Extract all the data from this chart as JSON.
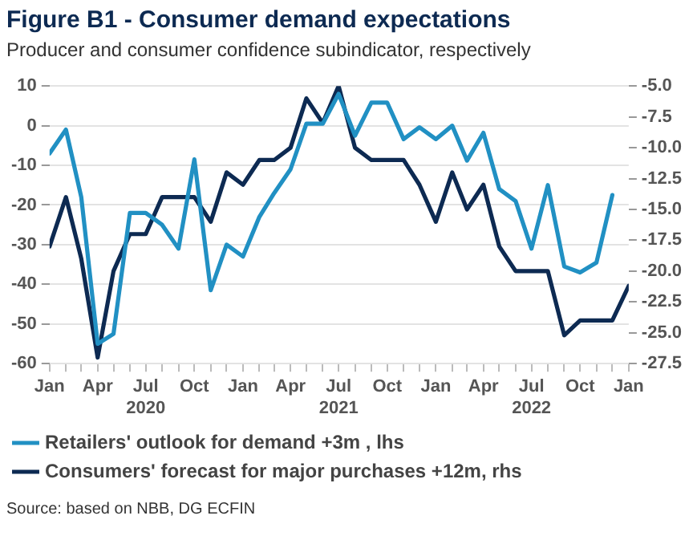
{
  "chart_data": {
    "type": "line",
    "title": "Figure B1 - Consumer demand expectations",
    "subtitle": "Producer and consumer confidence subindicator, respectively",
    "x": [
      "2020-01",
      "2020-02",
      "2020-03",
      "2020-04",
      "2020-05",
      "2020-06",
      "2020-07",
      "2020-08",
      "2020-09",
      "2020-10",
      "2020-11",
      "2020-12",
      "2021-01",
      "2021-02",
      "2021-03",
      "2021-04",
      "2021-05",
      "2021-06",
      "2021-07",
      "2021-08",
      "2021-09",
      "2021-10",
      "2021-11",
      "2021-12",
      "2022-01",
      "2022-02",
      "2022-03",
      "2022-04",
      "2022-05",
      "2022-06",
      "2022-07",
      "2022-08",
      "2022-09",
      "2022-10",
      "2022-11",
      "2022-12",
      "2023-01"
    ],
    "series": [
      {
        "name": "Retailers' outlook for demand +3m , lhs",
        "color": "#2190c3",
        "axis": "y",
        "values": [
          -7,
          -1,
          -18,
          -55,
          -52.5,
          -22,
          -22,
          -25,
          -31,
          -8.5,
          -41.5,
          -30,
          -33,
          -23,
          -17,
          -11,
          0.5,
          0.5,
          8,
          -2.5,
          5.8,
          5.8,
          -3.4,
          -0.4,
          -3.4,
          0,
          -8.8,
          -1.8,
          -16,
          -19,
          -31,
          -15,
          -35.5,
          -37,
          -34.5,
          -17.5,
          null
        ]
      },
      {
        "name": "Consumers' forecast for major purchases +12m, rhs",
        "color": "#0d2a52",
        "axis": "y2",
        "values": [
          -18,
          -14,
          -19,
          -27,
          -20,
          -17,
          -17,
          -14,
          -14,
          -14,
          -16,
          -12,
          -13,
          -11,
          -11,
          -10,
          -6,
          -8,
          -5,
          -10,
          -11,
          -11,
          -11,
          -13,
          -16,
          -12,
          -15,
          -13,
          -18,
          -20,
          -20,
          -20,
          -25.2,
          -24,
          -24,
          -24,
          -21.2
        ]
      }
    ],
    "xlim": [
      "2020-01",
      "2023-01"
    ],
    "xticks": [
      {
        "value": "2020-01",
        "label": "Jan"
      },
      {
        "value": "2020-02",
        "label": null
      },
      {
        "value": "2020-03",
        "label": null
      },
      {
        "value": "2020-04",
        "label": "Apr"
      },
      {
        "value": "2020-05",
        "label": null
      },
      {
        "value": "2020-06",
        "label": null
      },
      {
        "value": "2020-07",
        "label": "Jul\n2020"
      },
      {
        "value": "2020-08",
        "label": null
      },
      {
        "value": "2020-09",
        "label": null
      },
      {
        "value": "2020-10",
        "label": "Oct"
      },
      {
        "value": "2020-11",
        "label": null
      },
      {
        "value": "2020-12",
        "label": null
      },
      {
        "value": "2021-01",
        "label": "Jan"
      },
      {
        "value": "2021-02",
        "label": null
      },
      {
        "value": "2021-03",
        "label": null
      },
      {
        "value": "2021-04",
        "label": "Apr"
      },
      {
        "value": "2021-05",
        "label": null
      },
      {
        "value": "2021-06",
        "label": null
      },
      {
        "value": "2021-07",
        "label": "Jul\n2021"
      },
      {
        "value": "2021-08",
        "label": null
      },
      {
        "value": "2021-09",
        "label": null
      },
      {
        "value": "2021-10",
        "label": "Oct"
      },
      {
        "value": "2021-11",
        "label": null
      },
      {
        "value": "2021-12",
        "label": null
      },
      {
        "value": "2022-01",
        "label": "Jan"
      },
      {
        "value": "2022-02",
        "label": null
      },
      {
        "value": "2022-03",
        "label": null
      },
      {
        "value": "2022-04",
        "label": "Apr"
      },
      {
        "value": "2022-05",
        "label": null
      },
      {
        "value": "2022-06",
        "label": null
      },
      {
        "value": "2022-07",
        "label": "Jul\n2022"
      },
      {
        "value": "2022-08",
        "label": null
      },
      {
        "value": "2022-09",
        "label": null
      },
      {
        "value": "2022-10",
        "label": "Oct"
      },
      {
        "value": "2022-11",
        "label": null
      },
      {
        "value": "2022-12",
        "label": null
      },
      {
        "value": "2023-01",
        "label": "Jan"
      }
    ],
    "ylim": [
      -60,
      10
    ],
    "yticks": [
      -60,
      -50,
      -40,
      -30,
      -20,
      -10,
      0,
      10
    ],
    "y2lim": [
      -27.5,
      -5
    ],
    "y2ticks": [
      {
        "value": -27.5,
        "label": "-27.5"
      },
      {
        "value": -25,
        "label": "-25.0"
      },
      {
        "value": -22.5,
        "label": "-22.5"
      },
      {
        "value": -20,
        "label": "-20.0"
      },
      {
        "value": -17.5,
        "label": "-17.5"
      },
      {
        "value": -15,
        "label": "-15.0"
      },
      {
        "value": -12.5,
        "label": "-12.5"
      },
      {
        "value": -10,
        "label": "-10.0"
      },
      {
        "value": -7.5,
        "label": "-7.5"
      },
      {
        "value": -5,
        "label": "-5.0"
      }
    ],
    "grid": "y",
    "legend": "bottom",
    "marker": "none",
    "line_style": "solid",
    "annotations": [
      "Source: based on NBB, DG ECFIN"
    ]
  }
}
